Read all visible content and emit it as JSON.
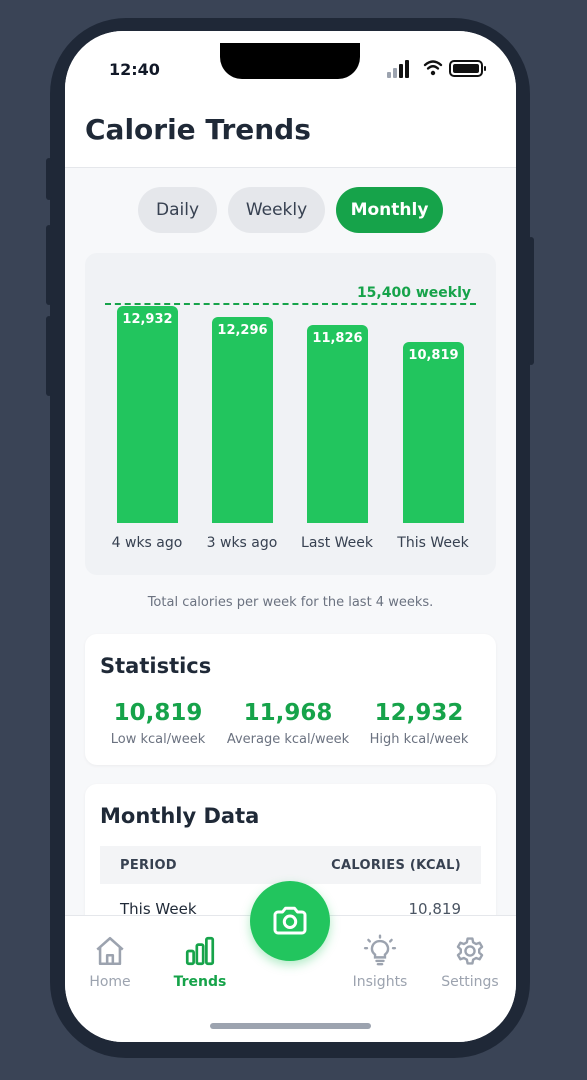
{
  "status": {
    "time": "12:40"
  },
  "header": {
    "title": "Calorie Trends"
  },
  "toggle": {
    "daily": "Daily",
    "weekly": "Weekly",
    "monthly": "Monthly",
    "selected": "Monthly"
  },
  "chart_data": {
    "type": "bar",
    "categories": [
      "4 wks ago",
      "3 wks ago",
      "Last Week",
      "This Week"
    ],
    "values": [
      12932,
      12296,
      11826,
      10819
    ],
    "value_labels": [
      "12,932",
      "12,296",
      "11,826",
      "10,819"
    ],
    "target": 15400,
    "target_label": "15,400 weekly",
    "ylim": [
      0,
      16100
    ],
    "bar_color": "#22c55e",
    "target_color": "#16a34a"
  },
  "caption": "Total calories per week for the last 4 weeks.",
  "statistics": {
    "title": "Statistics",
    "items": [
      {
        "value": "10,819",
        "label": "Low kcal/week"
      },
      {
        "value": "11,968",
        "label": "Average kcal/week"
      },
      {
        "value": "12,932",
        "label": "High kcal/week"
      }
    ]
  },
  "monthly": {
    "title": "Monthly Data",
    "columns": [
      "PERIOD",
      "CALORIES (KCAL)"
    ],
    "rows": [
      {
        "period": "This Week",
        "calories": "10,819"
      }
    ]
  },
  "nav": {
    "items": [
      {
        "label": "Home",
        "icon": "home-icon"
      },
      {
        "label": "Trends",
        "icon": "bar-chart-icon",
        "active": true
      },
      {
        "label": "Insights",
        "icon": "lightbulb-icon"
      },
      {
        "label": "Settings",
        "icon": "gear-icon"
      }
    ],
    "fab_icon": "camera-icon"
  },
  "colors": {
    "accent": "#16a34a",
    "bar": "#22c55e",
    "background": "#3a4456"
  }
}
